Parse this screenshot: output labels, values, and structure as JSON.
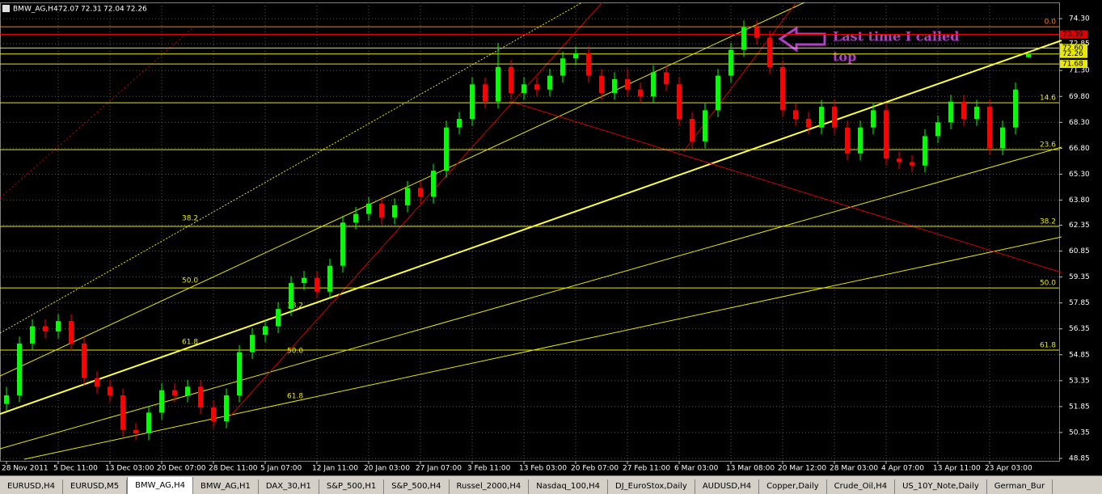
{
  "chart_data": {
    "type": "candlestick",
    "symbol": "BMW_AG,H4",
    "up_color": "#00ff00",
    "down_color": "#ff0000",
    "grid": true,
    "ylim": [
      48.71,
      75.24
    ],
    "yticks": [
      {
        "value": 74.3,
        "label": "74.30"
      },
      {
        "value": 72.85,
        "label": "72.85"
      },
      {
        "value": 71.3,
        "label": "71.30"
      },
      {
        "value": 69.8,
        "label": "69.80"
      },
      {
        "value": 68.3,
        "label": "68.30"
      },
      {
        "value": 66.8,
        "label": "66.80"
      },
      {
        "value": 65.3,
        "label": "65.30"
      },
      {
        "value": 63.8,
        "label": "63.80"
      },
      {
        "value": 62.35,
        "label": "62.35"
      },
      {
        "value": 60.85,
        "label": "60.85"
      },
      {
        "value": 59.35,
        "label": "59.35"
      },
      {
        "value": 57.85,
        "label": "57.85"
      },
      {
        "value": 56.35,
        "label": "56.35"
      },
      {
        "value": 54.85,
        "label": "54.85"
      },
      {
        "value": 53.35,
        "label": "53.35"
      },
      {
        "value": 51.85,
        "label": "51.85"
      },
      {
        "value": 50.35,
        "label": "50.35"
      },
      {
        "value": 48.85,
        "label": "48.85"
      }
    ],
    "categories": [
      "28 Nov 2011",
      null,
      null,
      null,
      "5 Dec 11:00",
      null,
      null,
      null,
      "13 Dec 03:00",
      null,
      null,
      null,
      "20 Dec 07:00",
      null,
      null,
      null,
      "28 Dec 11:00",
      null,
      null,
      null,
      "5 Jan 07:00",
      null,
      null,
      null,
      "12 Jan 11:00",
      null,
      null,
      null,
      "20 Jan 03:00",
      null,
      null,
      null,
      "27 Jan 07:00",
      null,
      null,
      null,
      "3 Feb 11:00",
      null,
      null,
      null,
      "13 Feb 03:00",
      null,
      null,
      null,
      "20 Feb 07:00",
      null,
      null,
      null,
      "27 Feb 11:00",
      null,
      null,
      null,
      "6 Mar 03:00",
      null,
      null,
      null,
      "13 Mar 08:00",
      null,
      null,
      null,
      "20 Mar 12:00",
      null,
      null,
      null,
      "28 Mar 03:00",
      null,
      null,
      null,
      "4 Apr 07:00",
      null,
      null,
      null,
      "13 Apr 11:00",
      null,
      null,
      null,
      "23 Apr 03:00",
      null,
      null,
      null
    ],
    "ohlc": [
      [
        52.0,
        53.0,
        51.6,
        52.5
      ],
      [
        52.5,
        55.9,
        52.1,
        55.5
      ],
      [
        55.5,
        56.9,
        55.1,
        56.5
      ],
      [
        56.5,
        56.9,
        55.8,
        56.2
      ],
      [
        56.2,
        57.2,
        55.8,
        56.8
      ],
      [
        56.8,
        57.2,
        55.1,
        55.5
      ],
      [
        55.5,
        55.9,
        53.1,
        53.5
      ],
      [
        53.5,
        53.9,
        52.6,
        53.0
      ],
      [
        53.0,
        53.4,
        52.1,
        52.5
      ],
      [
        52.5,
        52.9,
        50.1,
        50.5
      ],
      [
        50.5,
        50.9,
        49.9,
        50.3
      ],
      [
        50.3,
        51.9,
        49.9,
        51.5
      ],
      [
        51.5,
        53.2,
        51.1,
        52.8
      ],
      [
        52.8,
        53.2,
        52.1,
        52.5
      ],
      [
        52.5,
        53.4,
        52.1,
        53.0
      ],
      [
        53.0,
        53.4,
        51.4,
        51.8
      ],
      [
        51.8,
        52.2,
        50.6,
        51.0
      ],
      [
        51.0,
        52.9,
        50.6,
        52.5
      ],
      [
        52.5,
        55.4,
        52.1,
        55.0
      ],
      [
        55.0,
        56.4,
        54.6,
        56.0
      ],
      [
        56.0,
        56.9,
        55.6,
        56.5
      ],
      [
        56.5,
        57.9,
        56.1,
        57.5
      ],
      [
        57.5,
        59.4,
        57.1,
        59.0
      ],
      [
        59.0,
        59.7,
        58.6,
        59.3
      ],
      [
        59.3,
        59.7,
        58.1,
        58.5
      ],
      [
        58.5,
        60.4,
        58.1,
        60.0
      ],
      [
        60.0,
        62.9,
        59.6,
        62.5
      ],
      [
        62.5,
        63.4,
        62.1,
        63.0
      ],
      [
        63.0,
        64.0,
        62.6,
        63.6
      ],
      [
        63.6,
        64.0,
        62.4,
        62.8
      ],
      [
        62.8,
        63.9,
        62.4,
        63.5
      ],
      [
        63.5,
        64.9,
        63.1,
        64.5
      ],
      [
        64.5,
        64.9,
        63.6,
        64.0
      ],
      [
        64.0,
        65.9,
        63.6,
        65.5
      ],
      [
        65.5,
        68.4,
        65.1,
        68.0
      ],
      [
        68.0,
        68.9,
        67.6,
        68.5
      ],
      [
        68.5,
        70.9,
        68.1,
        70.5
      ],
      [
        70.5,
        70.9,
        69.1,
        69.5
      ],
      [
        69.5,
        72.9,
        69.1,
        71.5
      ],
      [
        71.5,
        71.9,
        69.6,
        70.0
      ],
      [
        70.0,
        70.9,
        69.6,
        70.5
      ],
      [
        70.5,
        70.9,
        69.8,
        70.2
      ],
      [
        70.2,
        71.4,
        69.8,
        71.0
      ],
      [
        71.0,
        72.4,
        70.6,
        72.0
      ],
      [
        72.0,
        72.7,
        71.6,
        72.3
      ],
      [
        72.3,
        72.7,
        70.6,
        71.0
      ],
      [
        71.0,
        71.4,
        69.6,
        70.0
      ],
      [
        70.0,
        71.2,
        69.6,
        70.8
      ],
      [
        70.8,
        71.4,
        69.8,
        70.2
      ],
      [
        70.2,
        70.6,
        69.4,
        69.8
      ],
      [
        69.8,
        71.6,
        69.4,
        71.2
      ],
      [
        71.2,
        71.6,
        70.1,
        70.5
      ],
      [
        70.5,
        70.9,
        68.1,
        68.5
      ],
      [
        68.5,
        68.9,
        66.8,
        67.2
      ],
      [
        67.2,
        69.4,
        66.8,
        69.0
      ],
      [
        69.0,
        71.4,
        68.6,
        71.0
      ],
      [
        71.0,
        72.9,
        70.6,
        72.5
      ],
      [
        72.5,
        74.2,
        72.1,
        73.8
      ],
      [
        73.8,
        74.2,
        72.8,
        73.2
      ],
      [
        73.2,
        73.6,
        71.1,
        71.5
      ],
      [
        71.5,
        71.9,
        68.6,
        69.0
      ],
      [
        69.0,
        69.4,
        68.1,
        68.5
      ],
      [
        68.5,
        68.9,
        67.6,
        68.0
      ],
      [
        68.0,
        69.6,
        67.6,
        69.2
      ],
      [
        69.2,
        69.6,
        67.6,
        68.0
      ],
      [
        68.0,
        68.4,
        66.1,
        66.5
      ],
      [
        66.5,
        68.4,
        66.1,
        68.0
      ],
      [
        68.0,
        69.4,
        67.6,
        69.0
      ],
      [
        69.0,
        69.4,
        65.8,
        66.2
      ],
      [
        66.2,
        66.6,
        65.6,
        66.0
      ],
      [
        66.0,
        66.4,
        65.4,
        65.8
      ],
      [
        65.8,
        67.9,
        65.4,
        67.5
      ],
      [
        67.5,
        68.7,
        67.1,
        68.3
      ],
      [
        68.3,
        69.9,
        67.9,
        69.5
      ],
      [
        69.5,
        69.9,
        68.1,
        68.5
      ],
      [
        68.5,
        69.6,
        68.1,
        69.2
      ],
      [
        69.2,
        69.6,
        66.4,
        66.8
      ],
      [
        66.8,
        68.4,
        66.4,
        68.0
      ],
      [
        68.0,
        70.6,
        67.6,
        70.2
      ],
      [
        72.07,
        72.31,
        72.04,
        72.26
      ]
    ],
    "fib_levels": [
      {
        "value": 73.83,
        "label": "0.0",
        "color": "#ff8000"
      },
      {
        "value": 69.43,
        "label": "14.6",
        "color": "#e8e800"
      },
      {
        "value": 66.72,
        "label": "23.6",
        "color": "#e8e800"
      },
      {
        "value": 62.28,
        "label": "38.2",
        "color": "#e8e800"
      },
      {
        "value": 58.72,
        "label": "50.0",
        "color": "#e8e800"
      },
      {
        "value": 55.12,
        "label": "61.8",
        "color": "#e8e800"
      }
    ],
    "price_labels": [
      {
        "value": 73.39,
        "label": "73.39",
        "color": "#e00000"
      },
      {
        "value": 72.6,
        "label": "72.60",
        "color": "#e8e800"
      },
      {
        "value": 72.26,
        "label": "72.26",
        "color": "#e8e800"
      },
      {
        "value": 71.68,
        "label": "71.68",
        "color": "#e8e800"
      }
    ],
    "channel_labels": [
      "38.2",
      "50.0",
      "61.8",
      "38.2",
      "50.0",
      "61.8"
    ],
    "annotation": [
      "Last time I called",
      "top"
    ]
  },
  "tabs": [
    {
      "label": "EURUSD,H4",
      "active": false
    },
    {
      "label": "EURUSD,M5",
      "active": false
    },
    {
      "label": "BMW_AG,H4",
      "active": true
    },
    {
      "label": "BMW_AG,H1",
      "active": false
    },
    {
      "label": "DAX_30,H1",
      "active": false
    },
    {
      "label": "S&P_500,H1",
      "active": false
    },
    {
      "label": "S&P_500,H4",
      "active": false
    },
    {
      "label": "Russel_2000,H4",
      "active": false
    },
    {
      "label": "Nasdaq_100,H4",
      "active": false
    },
    {
      "label": "DJ_EuroStox,Daily",
      "active": false
    },
    {
      "label": "AUDUSD,H4",
      "active": false
    },
    {
      "label": "Copper,Daily",
      "active": false
    },
    {
      "label": "Crude_Oil,H4",
      "active": false
    },
    {
      "label": "US_10Y_Note,Daily",
      "active": false
    },
    {
      "label": "German_Bur",
      "active": false
    }
  ]
}
